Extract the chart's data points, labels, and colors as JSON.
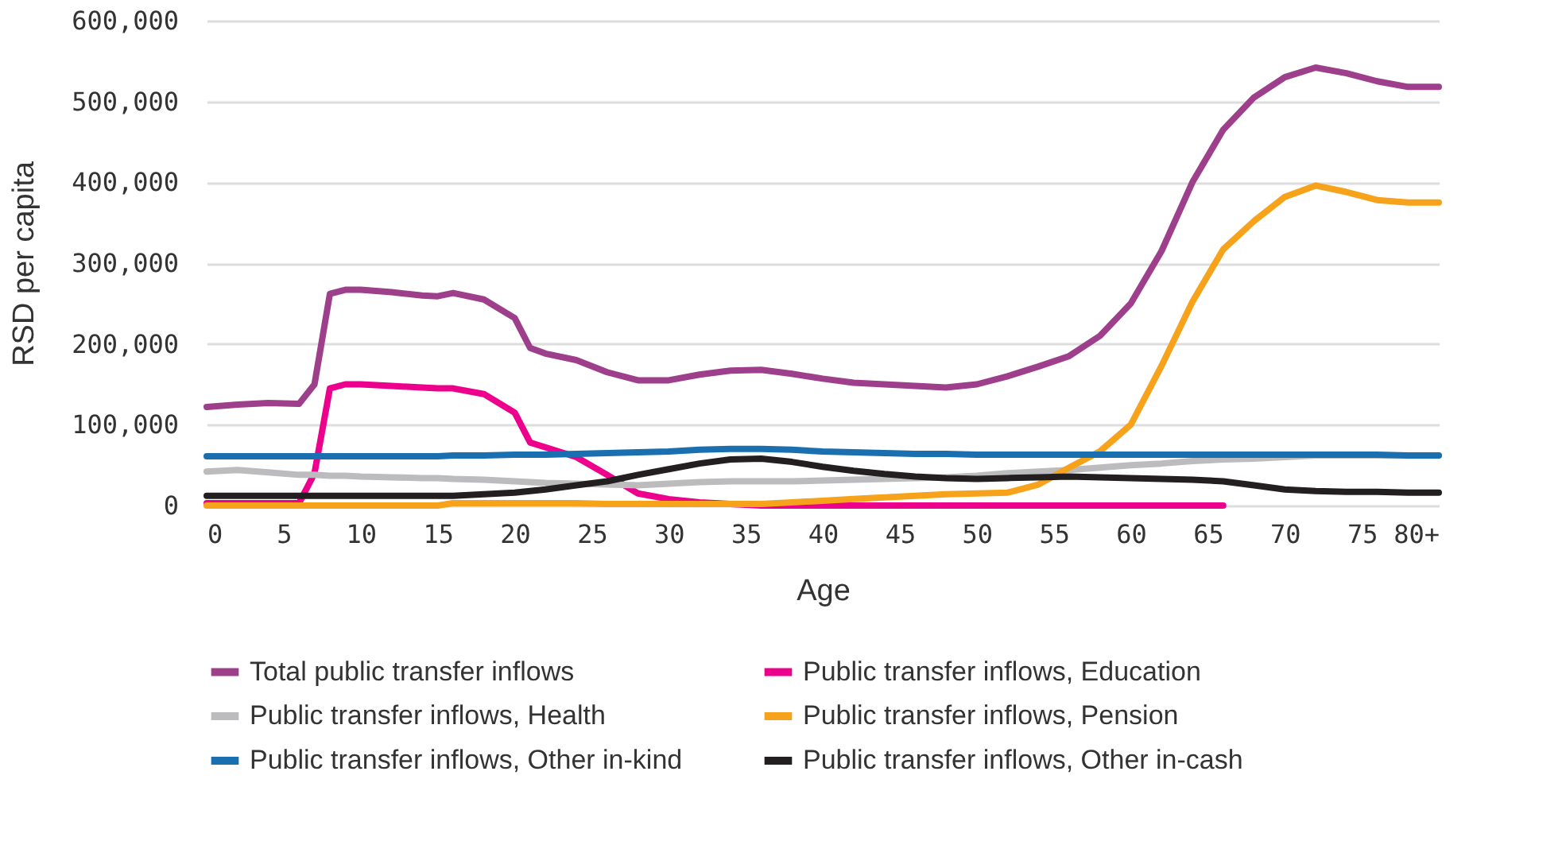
{
  "chart_data": {
    "type": "line",
    "xlabel": "Age",
    "ylabel": "RSD per capita",
    "x": [
      0,
      2,
      4,
      6,
      7,
      8,
      9,
      10,
      12,
      14,
      15,
      16,
      18,
      20,
      21,
      22,
      24,
      26,
      28,
      30,
      32,
      34,
      36,
      38,
      40,
      42,
      44,
      46,
      48,
      50,
      52,
      54,
      56,
      58,
      60,
      62,
      64,
      66,
      68,
      70,
      72,
      74,
      76,
      78,
      80
    ],
    "series": [
      {
        "name": "Total public transfer inflows",
        "color": "#9e3f8c",
        "values": [
          122000,
          125000,
          127000,
          126000,
          150000,
          262000,
          267000,
          267000,
          264000,
          260000,
          259000,
          263000,
          255000,
          232000,
          195000,
          188000,
          180000,
          165000,
          155000,
          155000,
          162000,
          167000,
          168000,
          163000,
          157000,
          152000,
          150000,
          148000,
          146000,
          150000,
          160000,
          172000,
          185000,
          210000,
          250000,
          315000,
          400000,
          465000,
          505000,
          530000,
          542000,
          535000,
          525000,
          518000,
          518000
        ]
      },
      {
        "name": "Public transfer inflows, Education",
        "color": "#ec008c",
        "values": [
          3000,
          3000,
          3000,
          3000,
          40000,
          145000,
          150000,
          150000,
          148000,
          146000,
          145000,
          145000,
          138000,
          115000,
          78000,
          72000,
          60000,
          38000,
          15000,
          8000,
          4000,
          2000,
          0,
          0,
          0,
          0,
          0,
          0,
          0,
          0,
          0,
          0,
          0,
          0,
          0,
          0,
          0,
          0,
          null,
          null,
          null,
          null,
          null,
          null,
          null
        ]
      },
      {
        "name": "Public transfer inflows, Health",
        "color": "#bcbcbe",
        "values": [
          42000,
          44000,
          41000,
          38000,
          38000,
          37000,
          37000,
          36000,
          35000,
          34000,
          34000,
          33000,
          32000,
          30000,
          29000,
          28000,
          27000,
          26000,
          25000,
          27000,
          29000,
          30000,
          30000,
          30000,
          31000,
          32000,
          33000,
          34000,
          35000,
          37000,
          40000,
          42000,
          44000,
          47000,
          50000,
          52000,
          55000,
          57000,
          58000,
          60000,
          62000,
          62000,
          62000,
          62000,
          62000
        ]
      },
      {
        "name": "Public transfer inflows, Pension",
        "color": "#f7a21b",
        "values": [
          0,
          0,
          0,
          0,
          0,
          0,
          0,
          0,
          0,
          0,
          0,
          3000,
          3000,
          3000,
          3000,
          3000,
          3000,
          2000,
          2000,
          2000,
          2000,
          2000,
          2000,
          4000,
          6000,
          8000,
          10000,
          12000,
          14000,
          15000,
          16000,
          26000,
          47000,
          67000,
          100000,
          173000,
          252000,
          317000,
          352000,
          382000,
          396000,
          388000,
          378000,
          375000,
          375000
        ]
      },
      {
        "name": "Public transfer inflows, Other in-kind",
        "color": "#1a6fb0",
        "values": [
          61000,
          61000,
          61000,
          61000,
          61000,
          61000,
          61000,
          61000,
          61000,
          61000,
          61000,
          62000,
          62000,
          63000,
          63000,
          63000,
          64000,
          65000,
          66000,
          67000,
          69000,
          70000,
          70000,
          69000,
          67000,
          66000,
          65000,
          64000,
          64000,
          63000,
          63000,
          63000,
          63000,
          63000,
          63000,
          63000,
          63000,
          63000,
          63000,
          63000,
          63000,
          63000,
          63000,
          62000,
          62000
        ]
      },
      {
        "name": "Public transfer inflows, Other in-cash",
        "color": "#231f20",
        "values": [
          12000,
          12000,
          12000,
          12000,
          12000,
          12000,
          12000,
          12000,
          12000,
          12000,
          12000,
          12000,
          14000,
          16000,
          18000,
          20000,
          25000,
          30000,
          38000,
          45000,
          52000,
          57000,
          58000,
          54000,
          48000,
          43000,
          39000,
          36000,
          34000,
          33000,
          34000,
          35000,
          36000,
          35000,
          34000,
          33000,
          32000,
          30000,
          25000,
          20000,
          18000,
          17000,
          17000,
          16000,
          16000
        ]
      }
    ],
    "xlim": [
      0,
      80
    ],
    "xticks": [
      0,
      5,
      10,
      15,
      20,
      25,
      30,
      35,
      40,
      45,
      50,
      55,
      60,
      65,
      70,
      75,
      {
        "value": 80,
        "label": "80+"
      }
    ],
    "ylim": [
      0,
      600000
    ],
    "yticks": [
      0,
      {
        "value": 100000,
        "label": "100,000"
      },
      {
        "value": 200000,
        "label": "200,000"
      },
      {
        "value": 300000,
        "label": "300,000"
      },
      {
        "value": 400000,
        "label": "400,000"
      },
      {
        "value": 500000,
        "label": "500,000"
      },
      {
        "value": 600000,
        "label": "600,000"
      }
    ],
    "grid": "y",
    "legend": "bottom",
    "marker": "none",
    "line_style": "solid"
  }
}
